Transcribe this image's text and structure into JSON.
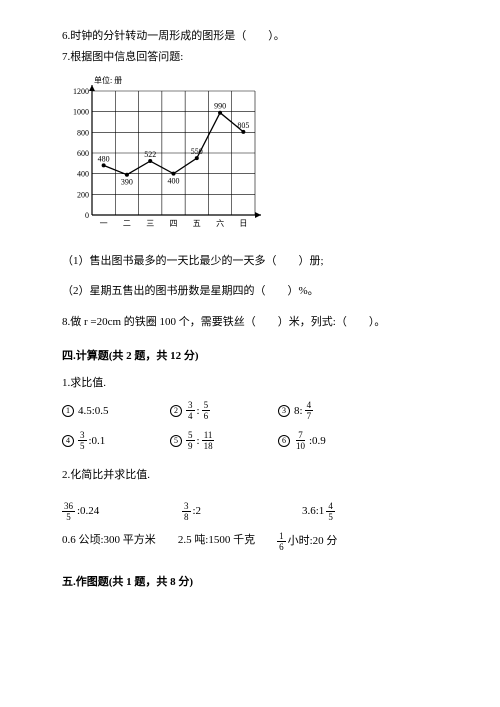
{
  "q6": "6.时钟的分针转动一周形成的图形是（　　）。",
  "q7": "7.根据图中信息回答问题:",
  "chart": {
    "unit_label": "单位: 册",
    "y_min": 0,
    "y_max": 1200,
    "y_step": 200,
    "y_ticks": [
      "0",
      "200",
      "400",
      "600",
      "800",
      "1000",
      "1200"
    ],
    "x_labels": [
      "一",
      "二",
      "三",
      "四",
      "五",
      "六",
      "日"
    ],
    "values": [
      480,
      390,
      522,
      400,
      550,
      990,
      805
    ],
    "point_labels": [
      "480",
      "390",
      "522",
      "400",
      "550",
      "990",
      "805"
    ],
    "line_color": "#000000",
    "grid_color": "#000000",
    "bg_color": "#ffffff",
    "font_size": 8,
    "marker_radius": 2
  },
  "q7_1": "（1）售出图书最多的一天比最少的一天多（　　）册;",
  "q7_2": "（2）星期五售出的图书册数是星期四的（　　）%。",
  "q8": "8.做 r =20cm 的铁圈 100 个，需要铁丝（　　）米，列式:（　　）。",
  "section4_title": "四.计算题(共 2 题，共 12 分)",
  "calc1_title": "1.求比值.",
  "calc1": {
    "i1_a": "4.5:0.5",
    "i2_n1": "3",
    "i2_d1": "4",
    "i2_n2": "5",
    "i2_d2": "6",
    "i3_n": "4",
    "i3_d": "7",
    "i4_n": "3",
    "i4_d": "5",
    "i4_b": ":0.1",
    "i5_n1": "5",
    "i5_d1": "9",
    "i5_n2": "11",
    "i5_d2": "18",
    "i6_n": "7",
    "i6_d": "10",
    "i6_b": ":0.9"
  },
  "calc2_title": "2.化简比并求比值.",
  "calc2": {
    "r1c1_n": "36",
    "r1c1_d": "5",
    "r1c1_t": ":0.24",
    "r1c2_n": "3",
    "r1c2_d": "8",
    "r1c2_t": ":2",
    "r1c3_a": "3.6:1",
    "r1c3_n": "4",
    "r1c3_d": "5",
    "r2c1": "0.6 公顷:300 平方米",
    "r2c2": "2.5 吨:1500 千克",
    "r2c3_n": "1",
    "r2c3_d": "6",
    "r2c3_t": " 小时:20 分"
  },
  "section5_title": "五.作图题(共 1 题，共 8 分)"
}
